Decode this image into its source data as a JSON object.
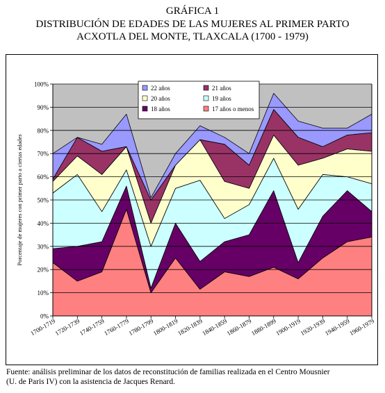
{
  "title": "GRÁFICA 1",
  "subtitle_line1": "DISTRIBUCIÓN DE EDADES DE LAS MUJERES AL PRIMER PARTO",
  "subtitle_line2": "ACXOTLA DEL MONTE, TLAXCALA (1700 - 1979)",
  "source_line1": "Fuente: análisis preliminar de los datos de reconstitución de familias realizada en el Centro Mousnier",
  "source_line2": "(U. de Paris IV) con la asistencia de Jacques Renard.",
  "colors": {
    "c17": "#ff8080",
    "c18": "#660066",
    "c19": "#ccffff",
    "c20": "#ffffcc",
    "c21": "#993366",
    "c22": "#9999ff",
    "plot_bg": "#c0c0c0"
  },
  "chart_data": {
    "type": "area",
    "stacked": true,
    "categories": [
      "1700-1719",
      "1720-1739",
      "1740-1759",
      "1760-1779",
      "1780-1799",
      "1800-1819",
      "1820-1839",
      "1840-1859",
      "1860-1879",
      "1880-1899",
      "1900-1919",
      "1920-1939",
      "1940-1959",
      "1960-1979"
    ],
    "ylabel": "Porcentaje de mujeres con primer parto a ciertas edades",
    "xlabel": "",
    "ylim": [
      0,
      100
    ],
    "yticks": [
      "0%",
      "10%",
      "20%",
      "30%",
      "40%",
      "50%",
      "60%",
      "70%",
      "80%",
      "90%",
      "100%"
    ],
    "grid": true,
    "legend_position": "top-center",
    "series": [
      {
        "name": "17 años o menos",
        "color_key": "c17",
        "values": [
          23,
          15,
          19,
          46,
          10,
          25,
          11.5,
          19,
          17,
          21,
          16,
          25,
          32,
          34
        ]
      },
      {
        "name": "18 años",
        "color_key": "c18",
        "values": [
          6,
          15,
          13,
          10,
          2,
          15,
          12,
          13,
          18,
          33,
          7,
          18,
          22,
          11
        ]
      },
      {
        "name": "19 años",
        "color_key": "c19",
        "values": [
          24,
          31,
          13,
          7,
          18,
          15,
          35,
          10,
          13,
          14,
          23,
          18,
          6,
          12
        ]
      },
      {
        "name": "20 años",
        "color_key": "c20",
        "values": [
          5,
          8,
          16,
          10,
          10,
          10,
          17.5,
          16,
          7,
          10,
          19,
          7,
          12,
          14
        ]
      },
      {
        "name": "21 años",
        "color_key": "c21",
        "values": [
          1,
          8,
          10,
          0,
          10,
          0,
          0,
          16,
          10,
          11,
          12,
          5,
          6,
          8
        ]
      },
      {
        "name": "22 años",
        "color_key": "c22",
        "values": [
          11,
          0,
          3,
          14,
          1,
          5,
          6,
          3,
          5,
          7,
          7,
          8,
          3,
          8
        ]
      }
    ]
  }
}
